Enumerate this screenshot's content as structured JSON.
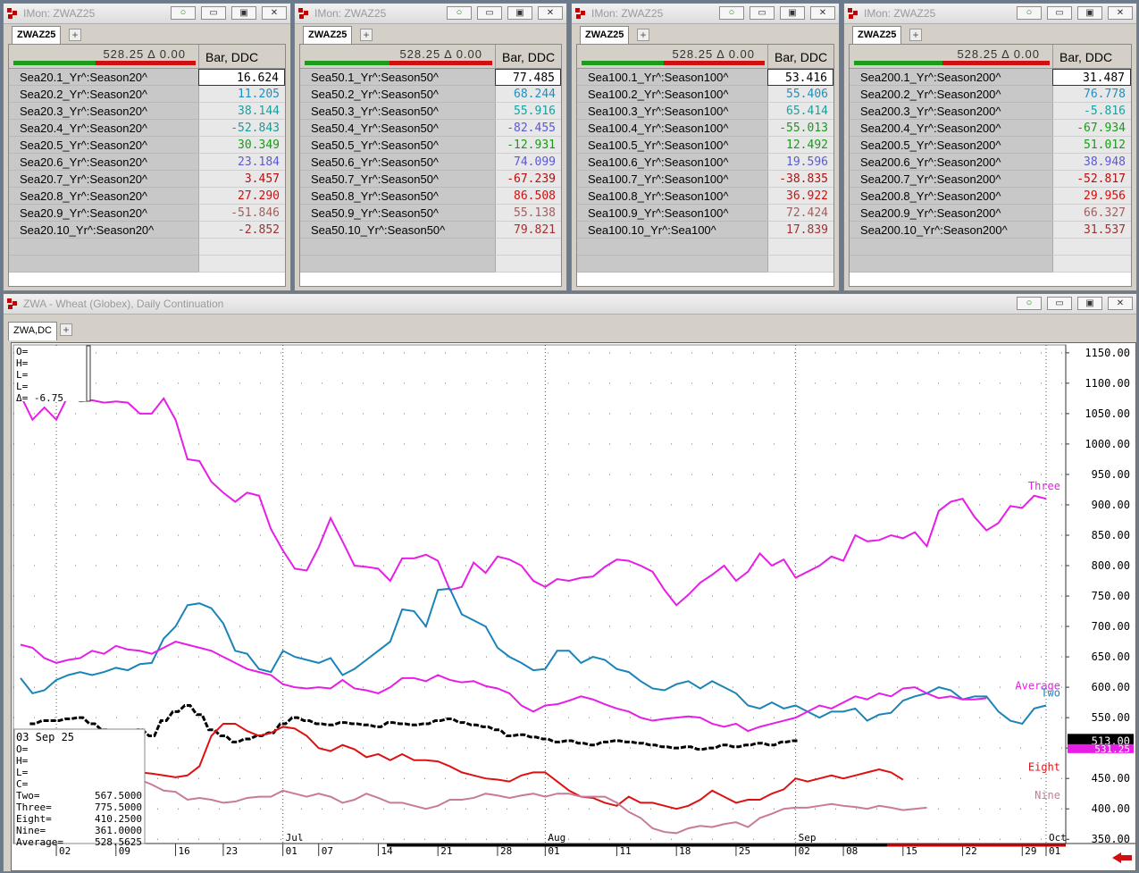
{
  "monitors": [
    {
      "title": "IMon: ZWAZ25",
      "tab": "ZWAZ25",
      "header_value": "528.25 Δ 0.00",
      "column_header": "Bar, DDC",
      "rows": [
        {
          "name": "Sea20.1_Yr^:Season20^",
          "value": "16.624",
          "color": "#000000"
        },
        {
          "name": "Sea20.2_Yr^:Season20^",
          "value": "11.205",
          "color": "#1f8fbf"
        },
        {
          "name": "Sea20.3_Yr^:Season20^",
          "value": "38.144",
          "color": "#1aa0a0"
        },
        {
          "name": "Sea20.4_Yr^:Season20^",
          "value": "-52.843",
          "color": "#1a9a9a"
        },
        {
          "name": "Sea20.5_Yr^:Season20^",
          "value": "30.349",
          "color": "#1a9a1a"
        },
        {
          "name": "Sea20.6_Yr^:Season20^",
          "value": "23.184",
          "color": "#5a5ad0"
        },
        {
          "name": "Sea20.7_Yr^:Season20^",
          "value": "3.457",
          "color": "#b01010"
        },
        {
          "name": "Sea20.8_Yr^:Season20^",
          "value": "27.290",
          "color": "#d01010"
        },
        {
          "name": "Sea20.9_Yr^:Season20^",
          "value": "-51.846",
          "color": "#a06060"
        },
        {
          "name": "Sea20.10_Yr^:Season20^",
          "value": "-2.852",
          "color": "#a03030"
        }
      ]
    },
    {
      "title": "IMon: ZWAZ25",
      "tab": "ZWAZ25",
      "header_value": "528.25 Δ 0.00",
      "column_header": "Bar, DDC",
      "rows": [
        {
          "name": "Sea50.1_Yr^:Season50^",
          "value": "77.485",
          "color": "#000000"
        },
        {
          "name": "Sea50.2_Yr^:Season50^",
          "value": "68.244",
          "color": "#1f8fbf"
        },
        {
          "name": "Sea50.3_Yr^:Season50^",
          "value": "55.916",
          "color": "#1aa0a0"
        },
        {
          "name": "Sea50.4_Yr^:Season50^",
          "value": "-82.455",
          "color": "#5a5ad0"
        },
        {
          "name": "Sea50.5_Yr^:Season50^",
          "value": "-12.931",
          "color": "#1a9a1a"
        },
        {
          "name": "Sea50.6_Yr^:Season50^",
          "value": "74.099",
          "color": "#5a5ad0"
        },
        {
          "name": "Sea50.7_Yr^:Season50^",
          "value": "-67.239",
          "color": "#b01010"
        },
        {
          "name": "Sea50.8_Yr^:Season50^",
          "value": "86.508",
          "color": "#d01010"
        },
        {
          "name": "Sea50.9_Yr^:Season50^",
          "value": "55.138",
          "color": "#a06060"
        },
        {
          "name": "Sea50.10_Yr^:Season50^",
          "value": "79.821",
          "color": "#a03030"
        }
      ]
    },
    {
      "title": "IMon: ZWAZ25",
      "tab": "ZWAZ25",
      "header_value": "528.25 Δ 0.00",
      "column_header": "Bar, DDC",
      "rows": [
        {
          "name": "Sea100.1_Yr^:Season100^",
          "value": "53.416",
          "color": "#000000"
        },
        {
          "name": "Sea100.2_Yr^:Season100^",
          "value": "55.406",
          "color": "#1f8fbf"
        },
        {
          "name": "Sea100.3_Yr^:Season100^",
          "value": "65.414",
          "color": "#1aa0a0"
        },
        {
          "name": "Sea100.4_Yr^:Season100^",
          "value": "-55.013",
          "color": "#1a9a1a"
        },
        {
          "name": "Sea100.5_Yr^:Season100^",
          "value": "12.492",
          "color": "#1a9a1a"
        },
        {
          "name": "Sea100.6_Yr^:Season100^",
          "value": "19.596",
          "color": "#5a5ad0"
        },
        {
          "name": "Sea100.7_Yr^:Season100^",
          "value": "-38.835",
          "color": "#b01010"
        },
        {
          "name": "Sea100.8_Yr^:Season100^",
          "value": "36.922",
          "color": "#d01010"
        },
        {
          "name": "Sea100.9_Yr^:Season100^",
          "value": "72.424",
          "color": "#a06060"
        },
        {
          "name": "Sea100.10_Yr^:Sea100^",
          "value": "17.839",
          "color": "#a03030"
        }
      ]
    },
    {
      "title": "IMon: ZWAZ25",
      "tab": "ZWAZ25",
      "header_value": "528.25 Δ 0.00",
      "column_header": "Bar, DDC",
      "rows": [
        {
          "name": "Sea200.1_Yr^:Season200^",
          "value": "31.487",
          "color": "#000000"
        },
        {
          "name": "Sea200.2_Yr^:Season200^",
          "value": "76.778",
          "color": "#1f8fbf"
        },
        {
          "name": "Sea200.3_Yr^:Season200^",
          "value": "-5.816",
          "color": "#1aa0a0"
        },
        {
          "name": "Sea200.4_Yr^:Season200^",
          "value": "-67.934",
          "color": "#1a9a1a"
        },
        {
          "name": "Sea200.5_Yr^:Season200^",
          "value": "51.012",
          "color": "#1a9a1a"
        },
        {
          "name": "Sea200.6_Yr^:Season200^",
          "value": "38.948",
          "color": "#5a5ad0"
        },
        {
          "name": "Sea200.7_Yr^:Season200^",
          "value": "-52.817",
          "color": "#b01010"
        },
        {
          "name": "Sea200.8_Yr^:Season200^",
          "value": "29.956",
          "color": "#d01010"
        },
        {
          "name": "Sea200.9_Yr^:Season200^",
          "value": "66.327",
          "color": "#a06060"
        },
        {
          "name": "Sea200.10_Yr^:Season200^",
          "value": "31.537",
          "color": "#a03030"
        }
      ]
    }
  ],
  "chart_window": {
    "title": "ZWA - Wheat (Globex), Daily Continuation",
    "tab": "ZWA,DC",
    "top_readout": [
      "O=",
      "H=",
      "L=",
      "L=",
      "Δ=  -6.75"
    ],
    "bottom_readout": {
      "date": "03 Sep 25",
      "lines": [
        "O=",
        "H=",
        "L=",
        "C="
      ],
      "values": [
        {
          "label": "Two=",
          "value": "567.5000"
        },
        {
          "label": "Three=",
          "value": "775.5000"
        },
        {
          "label": "Eight=",
          "value": "410.2500"
        },
        {
          "label": "Nine=",
          "value": "361.0000"
        },
        {
          "label": "Average=",
          "value": "528.5625"
        }
      ]
    },
    "price_marker": "513.00",
    "price_marker_2": "531.25"
  },
  "chart_data": {
    "type": "line",
    "y_ticks": [
      1150,
      1100,
      1050,
      1000,
      950,
      900,
      850,
      800,
      750,
      700,
      650,
      600,
      550,
      500,
      450,
      400,
      350
    ],
    "y_tick_labels": [
      "1150.00",
      "1100.00",
      "1050.00",
      "1000.00",
      "950.00",
      "900.00",
      "850.00",
      "800.00",
      "750.00",
      "700.00",
      "650.00",
      "600.00",
      "550.00",
      "500.00",
      "450.00",
      "400.00",
      "350.00"
    ],
    "ylim": [
      343,
      1163
    ],
    "x_count": 100,
    "x_day_labels": [
      {
        "i": 3,
        "t": "02"
      },
      {
        "i": 8,
        "t": "09"
      },
      {
        "i": 13,
        "t": "16"
      },
      {
        "i": 17,
        "t": "23"
      },
      {
        "i": 22,
        "t": "01"
      },
      {
        "i": 25,
        "t": "07"
      },
      {
        "i": 30,
        "t": "14"
      },
      {
        "i": 35,
        "t": "21"
      },
      {
        "i": 40,
        "t": "28"
      },
      {
        "i": 44,
        "t": "01"
      },
      {
        "i": 50,
        "t": "11"
      },
      {
        "i": 55,
        "t": "18"
      },
      {
        "i": 60,
        "t": "25"
      },
      {
        "i": 65,
        "t": "02"
      },
      {
        "i": 69,
        "t": "08"
      },
      {
        "i": 74,
        "t": "15"
      },
      {
        "i": 79,
        "t": "22"
      },
      {
        "i": 84,
        "t": "29"
      },
      {
        "i": 86,
        "t": "01"
      }
    ],
    "x_month_labels": [
      {
        "i": 22,
        "t": "Jul"
      },
      {
        "i": 44,
        "t": "Aug"
      },
      {
        "i": 65,
        "t": "Sep"
      },
      {
        "i": 86,
        "t": "Oct"
      }
    ],
    "month_dividers": [
      3,
      22,
      44,
      65,
      86
    ],
    "series": [
      {
        "name": "Three",
        "color": "#e61ee6",
        "values": [
          1080,
          1040,
          1060,
          1040,
          1080,
          1070,
          1072,
          1068,
          1070,
          1068,
          1050,
          1050,
          1075,
          1040,
          975,
          972,
          938,
          920,
          905,
          920,
          915,
          860,
          825,
          795,
          792,
          830,
          878,
          840,
          800,
          798,
          795,
          775,
          812,
          812,
          818,
          808,
          760,
          765,
          805,
          788,
          815,
          810,
          800,
          775,
          765,
          778,
          775,
          780,
          782,
          798,
          810,
          808,
          800,
          790,
          760,
          735,
          752,
          772,
          785,
          800,
          775,
          790,
          820,
          800,
          810,
          780,
          790,
          800,
          815,
          808,
          850,
          840,
          842,
          850,
          845,
          855,
          832,
          890,
          905,
          910,
          880,
          858,
          870,
          898,
          895,
          915,
          910
        ]
      },
      {
        "name": "Two",
        "color": "#1a84b8",
        "values": [
          615,
          590,
          595,
          612,
          620,
          625,
          620,
          625,
          632,
          628,
          638,
          640,
          680,
          700,
          735,
          738,
          730,
          705,
          660,
          655,
          630,
          625,
          660,
          650,
          645,
          640,
          648,
          620,
          630,
          645,
          660,
          675,
          728,
          725,
          700,
          760,
          762,
          720,
          710,
          700,
          665,
          650,
          640,
          628,
          630,
          660,
          660,
          640,
          650,
          645,
          630,
          625,
          610,
          598,
          595,
          605,
          610,
          598,
          610,
          600,
          590,
          570,
          565,
          575,
          565,
          570,
          560,
          550,
          560,
          560,
          565,
          545,
          555,
          558,
          578,
          585,
          590,
          600,
          595,
          580,
          585,
          585,
          560,
          545,
          540,
          565,
          570
        ]
      },
      {
        "name": "Average",
        "color": "#e61ee6",
        "values": [
          670,
          665,
          648,
          640,
          645,
          648,
          660,
          655,
          668,
          662,
          660,
          655,
          665,
          675,
          670,
          665,
          660,
          650,
          640,
          630,
          625,
          620,
          605,
          600,
          598,
          600,
          598,
          612,
          598,
          595,
          590,
          600,
          615,
          615,
          610,
          620,
          612,
          608,
          610,
          602,
          598,
          590,
          570,
          560,
          570,
          572,
          578,
          585,
          580,
          572,
          565,
          560,
          550,
          545,
          548,
          550,
          552,
          550,
          540,
          535,
          540,
          528,
          535,
          540,
          545,
          550,
          560,
          570,
          565,
          575,
          585,
          580,
          590,
          585,
          598,
          600,
          590,
          582,
          585,
          580,
          580,
          582
        ]
      },
      {
        "name": "Eight",
        "color": "#dd1111",
        "values": [
          488,
          470,
          465,
          445,
          440,
          455,
          470,
          470,
          478,
          465,
          460,
          458,
          455,
          452,
          455,
          470,
          520,
          540,
          540,
          528,
          520,
          525,
          535,
          532,
          520,
          500,
          495,
          505,
          498,
          485,
          490,
          480,
          490,
          480,
          480,
          478,
          470,
          460,
          455,
          450,
          448,
          445,
          455,
          460,
          460,
          445,
          430,
          420,
          418,
          410,
          405,
          420,
          410,
          410,
          405,
          400,
          405,
          415,
          430,
          420,
          410,
          415,
          415,
          425,
          432,
          450,
          445,
          450,
          455,
          450,
          455,
          460,
          465,
          460,
          448
        ]
      },
      {
        "name": "Nine",
        "color": "#c87a99",
        "values": [
          500,
          495,
          490,
          485,
          480,
          475,
          470,
          460,
          455,
          455,
          448,
          440,
          430,
          428,
          415,
          418,
          415,
          410,
          412,
          418,
          420,
          420,
          430,
          425,
          420,
          425,
          420,
          410,
          415,
          425,
          418,
          410,
          410,
          405,
          400,
          405,
          415,
          415,
          418,
          425,
          422,
          418,
          422,
          425,
          420,
          425,
          425,
          420,
          420,
          420,
          410,
          395,
          385,
          368,
          362,
          360,
          368,
          372,
          370,
          375,
          378,
          370,
          385,
          392,
          400,
          402,
          402,
          405,
          408,
          405,
          403,
          400,
          405,
          402,
          398,
          400,
          402
        ]
      }
    ],
    "bar_series": {
      "name": "ZWA",
      "color": "#000000",
      "start_index": 1,
      "values": [
        540,
        545,
        545,
        548,
        550,
        540,
        530,
        520,
        525,
        530,
        520,
        545,
        560,
        570,
        555,
        530,
        520,
        510,
        515,
        520,
        525,
        540,
        550,
        545,
        540,
        538,
        542,
        540,
        538,
        535,
        542,
        540,
        538,
        540,
        545,
        548,
        542,
        538,
        535,
        530,
        520,
        522,
        518,
        515,
        510,
        512,
        508,
        505,
        510,
        512,
        510,
        508,
        505,
        502,
        500,
        502,
        498,
        500,
        505,
        502,
        505,
        508,
        505,
        510,
        512
      ]
    },
    "series_end_labels": [
      {
        "name": "Three",
        "text": "Three",
        "color": "#e61ee6"
      },
      {
        "name": "Average",
        "text": "Average",
        "color": "#e61ee6"
      },
      {
        "name": "Two",
        "text": "Two",
        "color": "#1a84b8"
      },
      {
        "name": "Eight",
        "text": "Eight",
        "color": "#dd1111"
      },
      {
        "name": "Nine",
        "text": "Nine",
        "color": "#c87a99"
      }
    ]
  }
}
